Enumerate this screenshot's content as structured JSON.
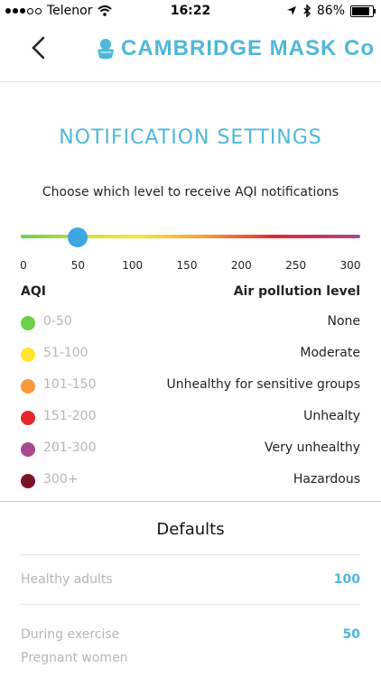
{
  "status": {
    "carrier": "Telenor",
    "time": "16:22",
    "battery": "86%",
    "battery_level": 0.86
  },
  "header": {
    "logo_text": "CAMBRIDGE MASK Co"
  },
  "title": "NOTIFICATION SETTINGS",
  "subtitle": "Choose which level to receive AQI notifications",
  "slider": {
    "value": 50,
    "min": 0,
    "max": 300,
    "ticks": [
      "0",
      "50",
      "100",
      "150",
      "200",
      "250",
      "300"
    ]
  },
  "table_headers": {
    "left": "AQI",
    "right": "Air pollution level"
  },
  "levels": [
    {
      "range": "0-50",
      "name": "None",
      "color": "#6bd047"
    },
    {
      "range": "51-100",
      "name": "Moderate",
      "color": "#ffe52e"
    },
    {
      "range": "101-150",
      "name": "Unhealthy for sensitive groups",
      "color": "#f79a3a"
    },
    {
      "range": "151-200",
      "name": "Unhealty",
      "color": "#e4282d"
    },
    {
      "range": "201-300",
      "name": "Very unhealthy",
      "color": "#a94a8e"
    },
    {
      "range": "300+",
      "name": "Hazardous",
      "color": "#7a1428"
    }
  ],
  "defaults": {
    "title": "Defaults",
    "items": [
      {
        "label": "Healthy adults",
        "value": "100"
      },
      {
        "label": "During exercise",
        "value": "50"
      },
      {
        "label": "Pregnant women",
        "value": ""
      }
    ]
  },
  "colors": {
    "accent": "#4fb8d8",
    "thumb": "#3ea7e2"
  }
}
